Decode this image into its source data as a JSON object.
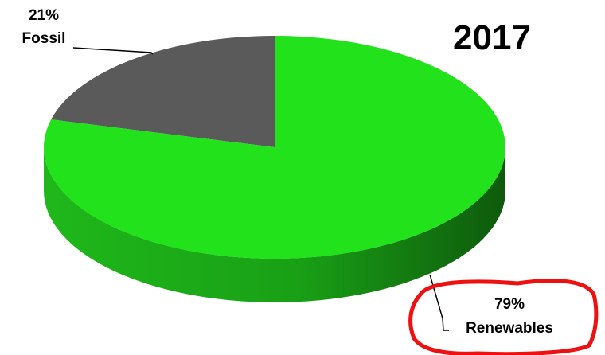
{
  "chart_data": {
    "type": "pie",
    "title": "2017",
    "slices": [
      {
        "label": "Fossil",
        "pct_label": "21%",
        "value": 21,
        "color": "#5a5a5a"
      },
      {
        "label": "Renewables",
        "pct_label": "79%",
        "value": 79,
        "color": "#22e31b"
      }
    ],
    "style": "3d",
    "highlight": {
      "slice": "Renewables",
      "color": "#ee1111"
    }
  }
}
